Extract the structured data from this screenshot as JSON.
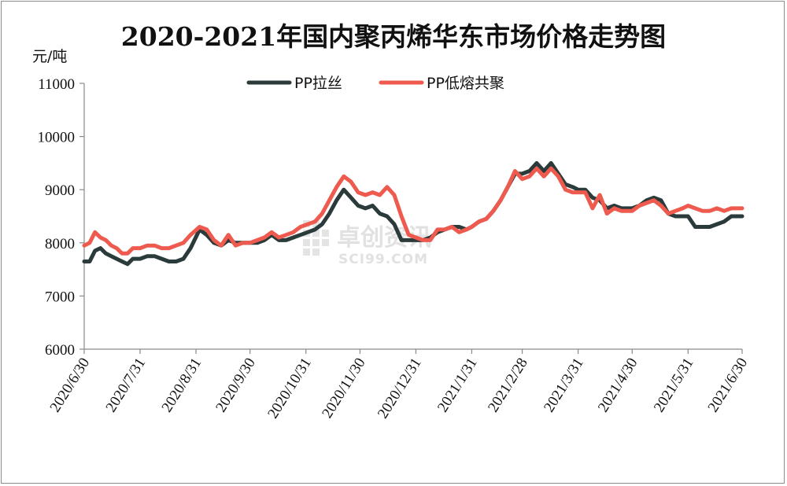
{
  "chart_data": {
    "type": "line",
    "title": "2020-2021年国内聚丙烯华东市场价格走势图",
    "ylabel": "元/吨",
    "ylim": [
      6000,
      11000
    ],
    "yticks": [
      "6000",
      "7000",
      "8000",
      "9000",
      "10000",
      "11000"
    ],
    "xlim": [
      "2020-06-30",
      "2021-06-30"
    ],
    "xticks": [
      "2020/6/30",
      "2020/7/31",
      "2020/8/31",
      "2020/9/30",
      "2020/10/31",
      "2020/11/30",
      "2020/12/31",
      "2021/1/31",
      "2021/2/28",
      "2021/3/31",
      "2021/4/30",
      "2021/5/31",
      "2021/6/30"
    ],
    "grid": false,
    "legend_position": "top",
    "series": [
      {
        "name": "PP拉丝",
        "color": "#2b3a3a",
        "points": [
          [
            "2020-06-30",
            7650
          ],
          [
            "2020-07-03",
            7650
          ],
          [
            "2020-07-06",
            7850
          ],
          [
            "2020-07-09",
            7900
          ],
          [
            "2020-07-12",
            7800
          ],
          [
            "2020-07-15",
            7750
          ],
          [
            "2020-07-18",
            7700
          ],
          [
            "2020-07-21",
            7650
          ],
          [
            "2020-07-24",
            7600
          ],
          [
            "2020-07-27",
            7700
          ],
          [
            "2020-07-31",
            7700
          ],
          [
            "2020-08-04",
            7750
          ],
          [
            "2020-08-08",
            7750
          ],
          [
            "2020-08-12",
            7700
          ],
          [
            "2020-08-16",
            7650
          ],
          [
            "2020-08-20",
            7650
          ],
          [
            "2020-08-24",
            7700
          ],
          [
            "2020-08-28",
            7900
          ],
          [
            "2020-09-02",
            8250
          ],
          [
            "2020-09-06",
            8150
          ],
          [
            "2020-09-10",
            8000
          ],
          [
            "2020-09-14",
            7950
          ],
          [
            "2020-09-18",
            8050
          ],
          [
            "2020-09-22",
            8000
          ],
          [
            "2020-09-26",
            8000
          ],
          [
            "2020-09-30",
            8000
          ],
          [
            "2020-10-04",
            8000
          ],
          [
            "2020-10-08",
            8050
          ],
          [
            "2020-10-12",
            8150
          ],
          [
            "2020-10-16",
            8050
          ],
          [
            "2020-10-20",
            8050
          ],
          [
            "2020-10-24",
            8100
          ],
          [
            "2020-10-28",
            8150
          ],
          [
            "2020-11-01",
            8200
          ],
          [
            "2020-11-05",
            8250
          ],
          [
            "2020-11-09",
            8350
          ],
          [
            "2020-11-13",
            8550
          ],
          [
            "2020-11-17",
            8800
          ],
          [
            "2020-11-21",
            9000
          ],
          [
            "2020-11-25",
            8850
          ],
          [
            "2020-11-29",
            8700
          ],
          [
            "2020-12-03",
            8650
          ],
          [
            "2020-12-07",
            8700
          ],
          [
            "2020-12-11",
            8550
          ],
          [
            "2020-12-15",
            8500
          ],
          [
            "2020-12-19",
            8350
          ],
          [
            "2020-12-23",
            8050
          ],
          [
            "2020-12-27",
            8050
          ],
          [
            "2020-12-31",
            8050
          ],
          [
            "2021-01-04",
            8050
          ],
          [
            "2021-01-08",
            8100
          ],
          [
            "2021-01-12",
            8200
          ],
          [
            "2021-01-16",
            8250
          ],
          [
            "2021-01-20",
            8300
          ],
          [
            "2021-01-24",
            8300
          ],
          [
            "2021-01-28",
            8250
          ],
          [
            "2021-01-31",
            8300
          ],
          [
            "2021-02-04",
            8400
          ],
          [
            "2021-02-08",
            8450
          ],
          [
            "2021-02-12",
            8600
          ],
          [
            "2021-02-16",
            8800
          ],
          [
            "2021-02-20",
            9050
          ],
          [
            "2021-02-24",
            9300
          ],
          [
            "2021-02-28",
            9300
          ],
          [
            "2021-03-04",
            9350
          ],
          [
            "2021-03-08",
            9500
          ],
          [
            "2021-03-12",
            9350
          ],
          [
            "2021-03-16",
            9500
          ],
          [
            "2021-03-20",
            9300
          ],
          [
            "2021-03-24",
            9100
          ],
          [
            "2021-03-28",
            9050
          ],
          [
            "2021-03-31",
            9000
          ],
          [
            "2021-04-04",
            9000
          ],
          [
            "2021-04-08",
            8850
          ],
          [
            "2021-04-12",
            8800
          ],
          [
            "2021-04-16",
            8650
          ],
          [
            "2021-04-20",
            8700
          ],
          [
            "2021-04-24",
            8650
          ],
          [
            "2021-04-30",
            8650
          ],
          [
            "2021-05-04",
            8700
          ],
          [
            "2021-05-08",
            8800
          ],
          [
            "2021-05-12",
            8850
          ],
          [
            "2021-05-16",
            8800
          ],
          [
            "2021-05-20",
            8550
          ],
          [
            "2021-05-24",
            8500
          ],
          [
            "2021-05-28",
            8500
          ],
          [
            "2021-05-31",
            8500
          ],
          [
            "2021-06-04",
            8300
          ],
          [
            "2021-06-08",
            8300
          ],
          [
            "2021-06-12",
            8300
          ],
          [
            "2021-06-16",
            8350
          ],
          [
            "2021-06-20",
            8400
          ],
          [
            "2021-06-24",
            8500
          ],
          [
            "2021-06-30",
            8500
          ]
        ]
      },
      {
        "name": "PP低熔共聚",
        "color": "#ee5a4d",
        "points": [
          [
            "2020-06-30",
            7950
          ],
          [
            "2020-07-03",
            8000
          ],
          [
            "2020-07-06",
            8200
          ],
          [
            "2020-07-09",
            8100
          ],
          [
            "2020-07-12",
            8050
          ],
          [
            "2020-07-15",
            7950
          ],
          [
            "2020-07-18",
            7900
          ],
          [
            "2020-07-21",
            7800
          ],
          [
            "2020-07-24",
            7800
          ],
          [
            "2020-07-27",
            7900
          ],
          [
            "2020-07-31",
            7900
          ],
          [
            "2020-08-04",
            7950
          ],
          [
            "2020-08-08",
            7950
          ],
          [
            "2020-08-12",
            7900
          ],
          [
            "2020-08-16",
            7900
          ],
          [
            "2020-08-20",
            7950
          ],
          [
            "2020-08-24",
            8000
          ],
          [
            "2020-08-28",
            8150
          ],
          [
            "2020-09-02",
            8300
          ],
          [
            "2020-09-06",
            8250
          ],
          [
            "2020-09-10",
            8050
          ],
          [
            "2020-09-14",
            7950
          ],
          [
            "2020-09-18",
            8150
          ],
          [
            "2020-09-22",
            7950
          ],
          [
            "2020-09-26",
            8000
          ],
          [
            "2020-09-30",
            8000
          ],
          [
            "2020-10-04",
            8050
          ],
          [
            "2020-10-08",
            8100
          ],
          [
            "2020-10-12",
            8200
          ],
          [
            "2020-10-16",
            8100
          ],
          [
            "2020-10-20",
            8150
          ],
          [
            "2020-10-24",
            8200
          ],
          [
            "2020-10-28",
            8300
          ],
          [
            "2020-11-01",
            8350
          ],
          [
            "2020-11-05",
            8400
          ],
          [
            "2020-11-09",
            8550
          ],
          [
            "2020-11-13",
            8800
          ],
          [
            "2020-11-17",
            9050
          ],
          [
            "2020-11-21",
            9250
          ],
          [
            "2020-11-25",
            9150
          ],
          [
            "2020-11-29",
            8950
          ],
          [
            "2020-12-03",
            8900
          ],
          [
            "2020-12-07",
            8950
          ],
          [
            "2020-12-11",
            8900
          ],
          [
            "2020-12-15",
            9050
          ],
          [
            "2020-12-19",
            8900
          ],
          [
            "2020-12-23",
            8500
          ],
          [
            "2020-12-27",
            8150
          ],
          [
            "2020-12-31",
            8100
          ],
          [
            "2021-01-04",
            8050
          ],
          [
            "2021-01-08",
            8050
          ],
          [
            "2021-01-12",
            8250
          ],
          [
            "2021-01-16",
            8250
          ],
          [
            "2021-01-20",
            8300
          ],
          [
            "2021-01-24",
            8200
          ],
          [
            "2021-01-28",
            8250
          ],
          [
            "2021-01-31",
            8300
          ],
          [
            "2021-02-04",
            8400
          ],
          [
            "2021-02-08",
            8450
          ],
          [
            "2021-02-12",
            8600
          ],
          [
            "2021-02-16",
            8800
          ],
          [
            "2021-02-20",
            9050
          ],
          [
            "2021-02-24",
            9350
          ],
          [
            "2021-02-28",
            9200
          ],
          [
            "2021-03-04",
            9250
          ],
          [
            "2021-03-08",
            9400
          ],
          [
            "2021-03-12",
            9250
          ],
          [
            "2021-03-16",
            9400
          ],
          [
            "2021-03-20",
            9250
          ],
          [
            "2021-03-24",
            9000
          ],
          [
            "2021-03-28",
            8950
          ],
          [
            "2021-03-31",
            8950
          ],
          [
            "2021-04-04",
            8950
          ],
          [
            "2021-04-08",
            8650
          ],
          [
            "2021-04-12",
            8900
          ],
          [
            "2021-04-16",
            8550
          ],
          [
            "2021-04-20",
            8650
          ],
          [
            "2021-04-24",
            8600
          ],
          [
            "2021-04-30",
            8600
          ],
          [
            "2021-05-04",
            8700
          ],
          [
            "2021-05-08",
            8750
          ],
          [
            "2021-05-12",
            8800
          ],
          [
            "2021-05-16",
            8700
          ],
          [
            "2021-05-20",
            8550
          ],
          [
            "2021-05-24",
            8600
          ],
          [
            "2021-05-28",
            8650
          ],
          [
            "2021-05-31",
            8700
          ],
          [
            "2021-06-04",
            8650
          ],
          [
            "2021-06-08",
            8600
          ],
          [
            "2021-06-12",
            8600
          ],
          [
            "2021-06-16",
            8650
          ],
          [
            "2021-06-20",
            8600
          ],
          [
            "2021-06-24",
            8650
          ],
          [
            "2021-06-30",
            8650
          ]
        ]
      }
    ]
  },
  "watermark": {
    "text_cn": "卓创资讯",
    "text_en": "SCI99.COM"
  }
}
